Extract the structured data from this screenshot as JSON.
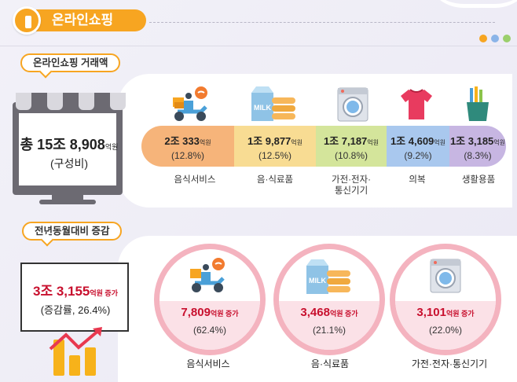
{
  "header": {
    "title": "온라인쇼핑"
  },
  "colors": {
    "accent": "#f7a521",
    "increase_red": "#c8102e",
    "circle_ring": "#f4b3bf",
    "dots": [
      "#f7a521",
      "#8ab4e8",
      "#9bcf6c"
    ]
  },
  "volume": {
    "label": "온라인쇼핑 거래액",
    "total": {
      "value": "총 15조 8,908",
      "unit": "억원",
      "note": "(구성비)"
    },
    "categories": [
      {
        "value": "2조 333",
        "unit": "억원",
        "pct": "(12.8%)",
        "name": "음식서비스",
        "icon": "delivery-scooter-icon",
        "color": "#f6b47a"
      },
      {
        "value": "1조 9,877",
        "unit": "억원",
        "pct": "(12.5%)",
        "name": "음·식료품",
        "icon": "milk-carton-icon",
        "color": "#f8dc93"
      },
      {
        "value": "1조 7,187",
        "unit": "억원",
        "pct": "(10.8%)",
        "name1": "가전·전자·",
        "name2": "통신기기",
        "icon": "washing-machine-icon",
        "color": "#d4e59b"
      },
      {
        "value": "1조 4,609",
        "unit": "억원",
        "pct": "(9.2%)",
        "name": "의복",
        "icon": "tshirt-icon",
        "color": "#a9c8ee"
      },
      {
        "value": "1조 3,185",
        "unit": "억원",
        "pct": "(8.3%)",
        "name": "생활용품",
        "icon": "toothbrush-cup-icon",
        "color": "#c7b6e2"
      }
    ]
  },
  "yoy": {
    "label": "전년동월대비 증감",
    "total": {
      "value": "3조 3,155",
      "unit": "억원 증가",
      "rate": "(증감률, 26.4%)"
    },
    "items": [
      {
        "value": "7,809",
        "unit": "억원 증가",
        "pct": "(62.4%)",
        "name": "음식서비스",
        "icon": "delivery-scooter-icon"
      },
      {
        "value": "3,468",
        "unit": "억원 증가",
        "pct": "(21.1%)",
        "name": "음·식료품",
        "icon": "milk-carton-icon"
      },
      {
        "value": "3,101",
        "unit": "억원 증가",
        "pct": "(22.0%)",
        "name": "가전·전자·통신기기",
        "icon": "washing-machine-icon"
      }
    ]
  }
}
